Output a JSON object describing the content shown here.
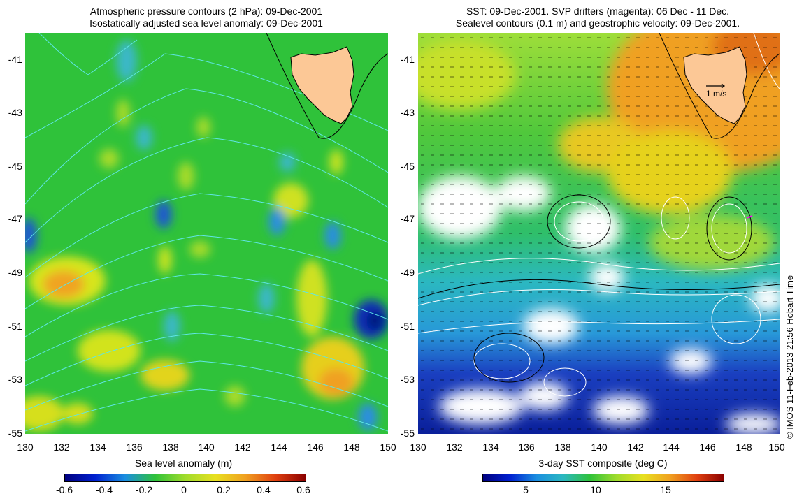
{
  "left_panel": {
    "title_line1": "Atmospheric pressure contours (2 hPa): 09-Dec-2001",
    "title_line2": "Isostatically adjusted sea level anomaly: 09-Dec-2001",
    "colorbar": {
      "title": "Sea level anomaly (m)",
      "ticks": [
        "-0.6",
        "-0.4",
        "-0.2",
        "0",
        "0.2",
        "0.4",
        "0.6"
      ]
    }
  },
  "right_panel": {
    "title_line1": "SST: 09-Dec-2001. SVP drifters (magenta): 06 Dec - 11 Dec.",
    "title_line2": "Sealevel contours (0.1 m) and geostrophic velocity: 09-Dec-2001.",
    "velocity_scale_label": "1 m/s",
    "colorbar": {
      "title": "3-day SST composite (deg C)",
      "ticks": [
        "5",
        "10",
        "15"
      ]
    }
  },
  "axes": {
    "lat_labels": [
      "-41",
      "-43",
      "-45",
      "-47",
      "-49",
      "-51",
      "-53",
      "-55"
    ],
    "lon_labels": [
      "130",
      "132",
      "134",
      "136",
      "138",
      "140",
      "142",
      "144",
      "146",
      "148",
      "150"
    ]
  },
  "copyright": "© IMOS 11-Feb-2013 21:56 Hobart Time",
  "colors": {
    "land": "#fcc896",
    "ocean_base_left": "#2fc23a",
    "ocean_base_right": "#34c03a",
    "pressure_contour": "#5fe6e6",
    "sealevel_contour": "#ffffff",
    "velocity_arrow": "#000000",
    "drifter": "#ff00ff"
  }
}
